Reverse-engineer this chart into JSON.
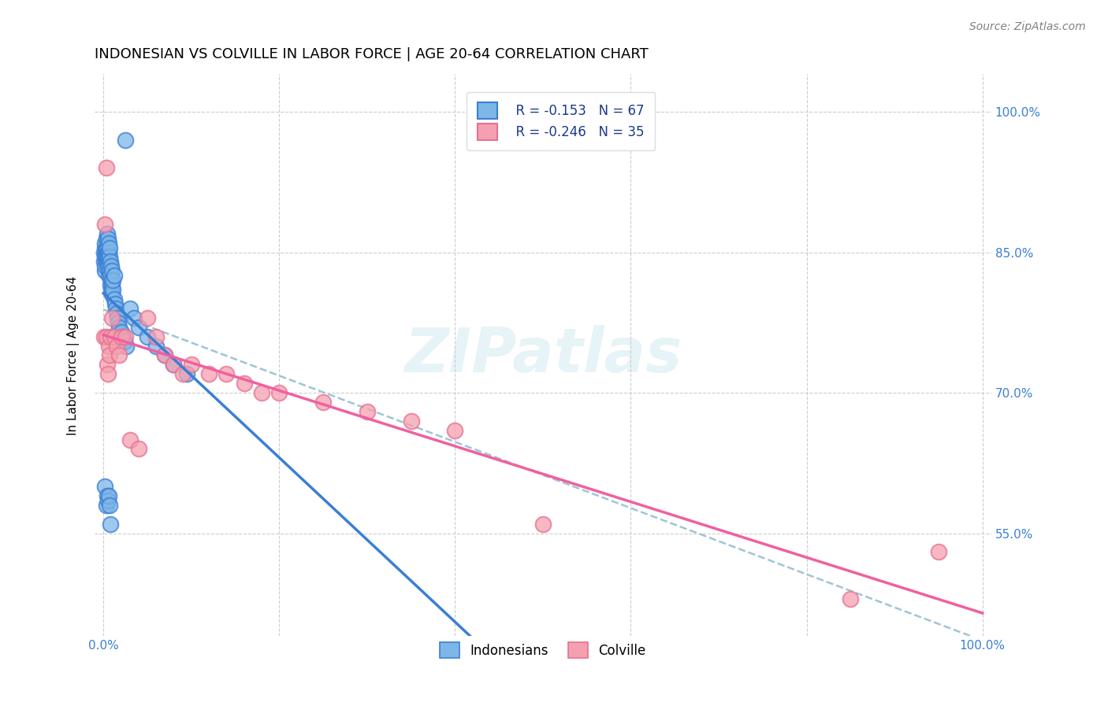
{
  "title": "INDONESIAN VS COLVILLE IN LABOR FORCE | AGE 20-64 CORRELATION CHART",
  "source": "Source: ZipAtlas.com",
  "ylabel": "In Labor Force | Age 20-64",
  "legend_r1": "R = -0.153",
  "legend_n1": "N = 67",
  "legend_r2": "R = -0.246",
  "legend_n2": "N = 35",
  "indonesian_color": "#7eb6e8",
  "colville_color": "#f5a0b0",
  "trendline_blue": "#3a7fd5",
  "trendline_pink": "#f060a0",
  "trendline_dashed": "#a0c4d8",
  "edge_blue": "#3a7fd5",
  "edge_pink": "#e87090",
  "watermark": "ZIPatlas",
  "indonesian_x": [
    0.001,
    0.001,
    0.002,
    0.002,
    0.002,
    0.002,
    0.002,
    0.003,
    0.003,
    0.003,
    0.003,
    0.003,
    0.004,
    0.004,
    0.004,
    0.004,
    0.005,
    0.005,
    0.005,
    0.005,
    0.006,
    0.006,
    0.006,
    0.006,
    0.006,
    0.007,
    0.007,
    0.007,
    0.008,
    0.008,
    0.008,
    0.009,
    0.009,
    0.009,
    0.01,
    0.01,
    0.01,
    0.011,
    0.011,
    0.012,
    0.012,
    0.013,
    0.014,
    0.015,
    0.016,
    0.017,
    0.018,
    0.02,
    0.022,
    0.024,
    0.026,
    0.03,
    0.035,
    0.04,
    0.05,
    0.06,
    0.07,
    0.08,
    0.095,
    0.002,
    0.003,
    0.004,
    0.005,
    0.006,
    0.007,
    0.008,
    0.025
  ],
  "indonesian_y": [
    0.84,
    0.85,
    0.83,
    0.845,
    0.855,
    0.86,
    0.835,
    0.84,
    0.85,
    0.855,
    0.845,
    0.865,
    0.845,
    0.855,
    0.87,
    0.835,
    0.85,
    0.84,
    0.865,
    0.845,
    0.84,
    0.835,
    0.85,
    0.825,
    0.86,
    0.83,
    0.845,
    0.855,
    0.825,
    0.84,
    0.815,
    0.82,
    0.835,
    0.81,
    0.815,
    0.805,
    0.83,
    0.81,
    0.82,
    0.8,
    0.825,
    0.795,
    0.79,
    0.785,
    0.78,
    0.775,
    0.77,
    0.765,
    0.76,
    0.755,
    0.75,
    0.79,
    0.78,
    0.77,
    0.76,
    0.75,
    0.74,
    0.73,
    0.72,
    0.6,
    0.58,
    0.59,
    0.585,
    0.59,
    0.58,
    0.56,
    0.97
  ],
  "colville_x": [
    0.001,
    0.002,
    0.003,
    0.003,
    0.004,
    0.005,
    0.006,
    0.007,
    0.008,
    0.01,
    0.012,
    0.015,
    0.018,
    0.02,
    0.025,
    0.03,
    0.04,
    0.05,
    0.06,
    0.07,
    0.08,
    0.09,
    0.1,
    0.12,
    0.14,
    0.16,
    0.18,
    0.2,
    0.25,
    0.3,
    0.35,
    0.4,
    0.5,
    0.85,
    0.95
  ],
  "colville_y": [
    0.76,
    0.88,
    0.76,
    0.94,
    0.73,
    0.72,
    0.75,
    0.74,
    0.76,
    0.78,
    0.76,
    0.75,
    0.74,
    0.76,
    0.76,
    0.65,
    0.64,
    0.78,
    0.76,
    0.74,
    0.73,
    0.72,
    0.73,
    0.72,
    0.72,
    0.71,
    0.7,
    0.7,
    0.69,
    0.68,
    0.67,
    0.66,
    0.56,
    0.48,
    0.53
  ],
  "trendline_x_start": 0.0,
  "trendline_x_end": 1.0,
  "xlim": [
    -0.01,
    1.01
  ],
  "ylim": [
    0.44,
    1.04
  ],
  "yticks": [
    0.55,
    0.7,
    0.85,
    1.0
  ],
  "ytick_labels": [
    "55.0%",
    "70.0%",
    "85.0%",
    "100.0%"
  ],
  "xticks": [
    0.0,
    0.2,
    0.4,
    0.6,
    0.8,
    1.0
  ],
  "grid_color": "#cccccc",
  "background_color": "#ffffff",
  "tick_label_color": "#3a7fd5"
}
